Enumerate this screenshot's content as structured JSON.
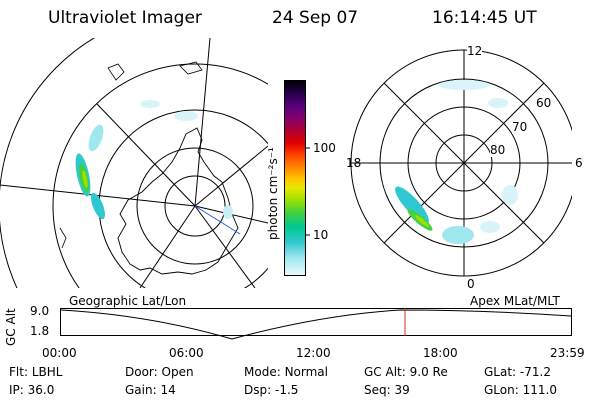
{
  "header": {
    "title": "Ultraviolet Imager",
    "date": "24 Sep 07",
    "time": "16:14:45 UT"
  },
  "colorbar": {
    "unit_label": "photon cm⁻²s⁻¹",
    "ticks": [
      {
        "label": "100",
        "value": 100
      },
      {
        "label": "10",
        "value": 10
      }
    ],
    "colors": [
      "#000000",
      "#2a0050",
      "#600080",
      "#8a006a",
      "#b00030",
      "#e00000",
      "#ff4000",
      "#ff8000",
      "#ffc000",
      "#e8e800",
      "#a0e000",
      "#40d040",
      "#00c890",
      "#30c8d0",
      "#a0e8f0",
      "#e8fbfb"
    ]
  },
  "geo_map": {
    "projection_label": "Geographic Lat/Lon"
  },
  "apex_map": {
    "projection_label": "Apex MLat/MLT",
    "mlt_labels": {
      "top": "12",
      "left": "18",
      "right": "6",
      "bottom": "0"
    },
    "lat_labels": [
      "60",
      "70",
      "80"
    ]
  },
  "timeline": {
    "y_title": "GC Alt",
    "y_labels": [
      "9.0",
      "1.8"
    ],
    "x_labels": [
      "00:00",
      "06:00",
      "12:00",
      "18:00",
      "23:59"
    ],
    "current_time": "16:14"
  },
  "info": [
    {
      "label": "Flt:",
      "value": "LBHL"
    },
    {
      "label": "Door:",
      "value": "Open"
    },
    {
      "label": "Mode:",
      "value": "Normal"
    },
    {
      "label": "GC Alt:",
      "value": "9.0 Re"
    },
    {
      "label": "GLat:",
      "value": "-71.2"
    },
    {
      "label": "IP:",
      "value": "36.0"
    },
    {
      "label": "Gain:",
      "value": "14"
    },
    {
      "label": "Dsp:",
      "value": "-1.5"
    },
    {
      "label": "Seq:",
      "value": "39"
    },
    {
      "label": "GLon:",
      "value": "111.0"
    }
  ]
}
